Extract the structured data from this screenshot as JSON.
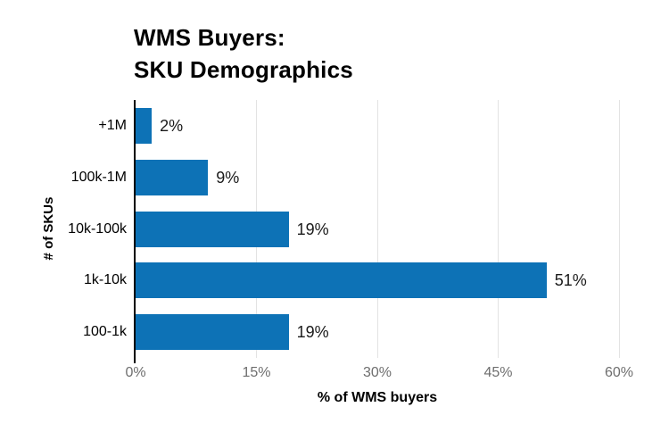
{
  "chart_data": {
    "type": "bar",
    "orientation": "horizontal",
    "title_line1": "WMS Buyers:",
    "title_line2": "SKU Demographics",
    "categories": [
      "+1M",
      "100k-1M",
      "10k-100k",
      "1k-10k",
      "100-1k"
    ],
    "values": [
      2,
      9,
      19,
      51,
      19
    ],
    "value_labels": [
      "2%",
      "9%",
      "19%",
      "51%",
      "19%"
    ],
    "xlabel": "% of WMS buyers",
    "ylabel": "# of SKUs",
    "xlim": [
      0,
      60
    ],
    "x_ticks": [
      "0%",
      "15%",
      "30%",
      "45%",
      "60%"
    ],
    "x_tick_values": [
      0,
      15,
      30,
      45,
      60
    ],
    "grid": "vertical-at-nonzero-ticks",
    "legend": "none",
    "colors": {
      "bar": "#0d72b6",
      "gridline": "#e3e3e3",
      "axis_line": "#000000",
      "tick_label": "#6e6e6e",
      "text": "#000000"
    }
  }
}
